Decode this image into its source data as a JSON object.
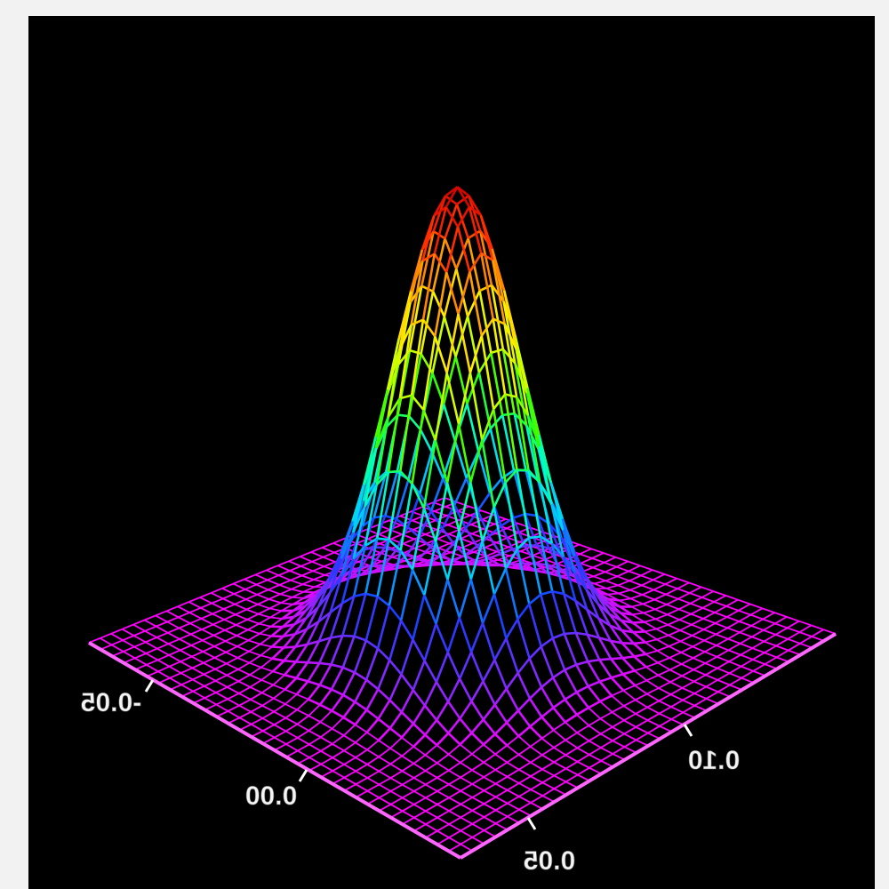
{
  "chart_data": {
    "type": "surface",
    "title": "",
    "xlabel": "",
    "ylabel": "",
    "zlabel": "",
    "render_style": "wireframe mesh",
    "background_color": "#000000",
    "base_color": "#ff33ff",
    "colormap": [
      "#ff00ff",
      "#7a2bff",
      "#1a3dff",
      "#00c8ff",
      "#00ffc0",
      "#30ff00",
      "#c8ff00",
      "#ffee00",
      "#ff9a00",
      "#ff2a00",
      "#cc0000"
    ],
    "axis_range": [
      -0.1,
      0.1
    ],
    "peak_height_relative": 1.0,
    "peak_center": [
      0.0,
      0.0
    ],
    "peak_width": 0.025,
    "grid_resolution": 32,
    "axes": [
      {
        "name": "left-axis",
        "tick_labels": [
          "-0.05",
          "0.00"
        ]
      },
      {
        "name": "right-axis",
        "tick_labels": [
          "0.05",
          "0.10"
        ]
      }
    ]
  }
}
